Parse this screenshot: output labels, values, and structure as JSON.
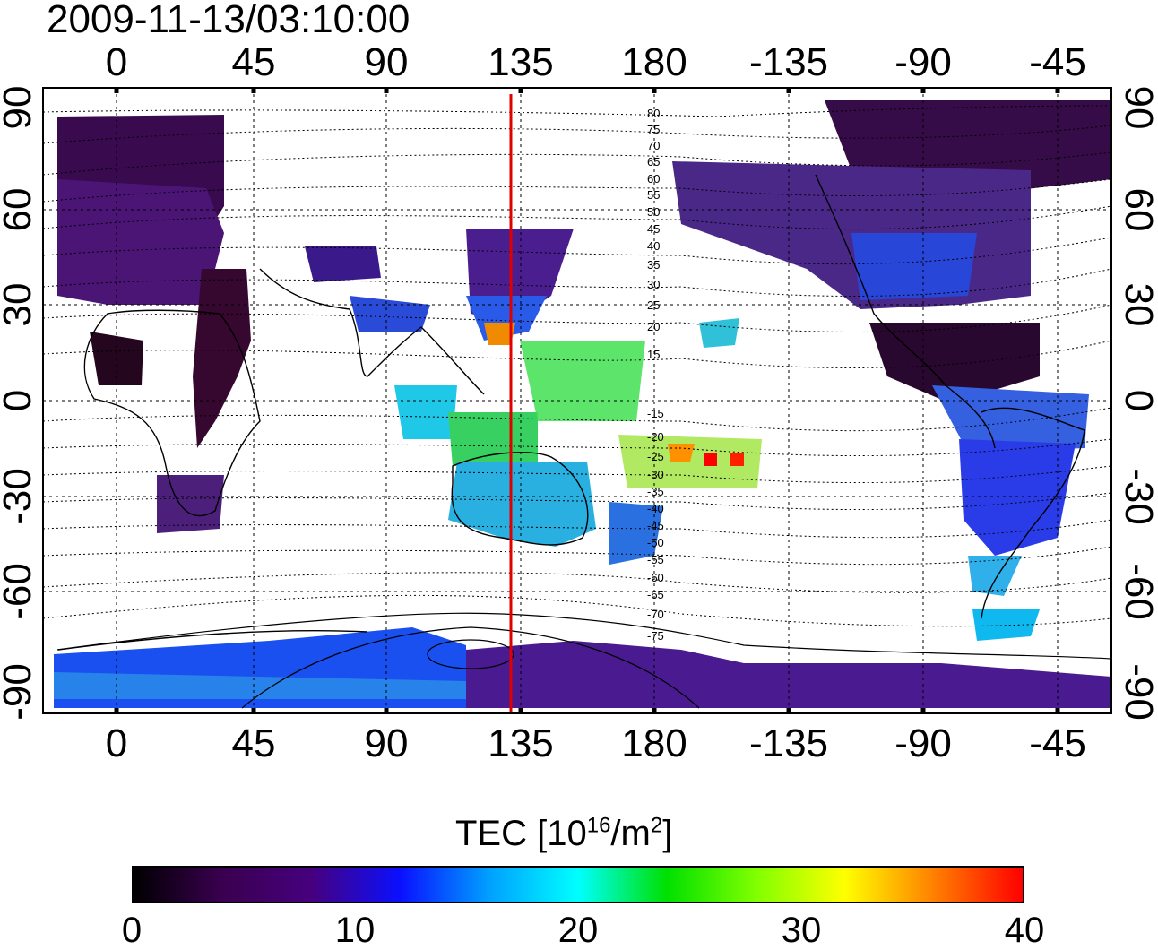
{
  "title": "2009-11-13/03:10:00",
  "map": {
    "projection": "equirectangular",
    "longitude_axis_top": [
      "0",
      "45",
      "90",
      "135",
      "180",
      "-135",
      "-90",
      "-45"
    ],
    "longitude_axis_bottom": [
      "0",
      "45",
      "90",
      "135",
      "180",
      "-135",
      "-90",
      "-45"
    ],
    "latitude_axis_left": [
      "90",
      "60",
      "30",
      "0",
      "-30",
      "-60",
      "-90"
    ],
    "latitude_axis_right": [
      "90",
      "60",
      "30",
      "0",
      "-30",
      "-60",
      "-90"
    ],
    "highlight_meridian": {
      "longitude": 133,
      "color": "#e00000"
    },
    "contour_labels_north": [
      "80",
      "75",
      "70",
      "65",
      "60",
      "55",
      "50",
      "45",
      "40",
      "35",
      "30",
      "25",
      "20",
      "15"
    ],
    "contour_labels_south": [
      "-15",
      "-20",
      "-25",
      "-30",
      "-35",
      "-40",
      "-45",
      "-50",
      "-55",
      "-60",
      "-65",
      "-70",
      "-75"
    ],
    "grid": true
  },
  "colorbar": {
    "title_main": "TEC  [10",
    "title_exp1": "16",
    "title_mid": "/m",
    "title_exp2": "2",
    "title_end": "]",
    "ticks": [
      "0",
      "10",
      "20",
      "30",
      "40"
    ],
    "range": [
      0,
      40
    ],
    "colors": [
      "#000000",
      "#3a0050",
      "#46007e",
      "#0a10ff",
      "#00a0ff",
      "#00ffff",
      "#00e000",
      "#80ff00",
      "#ffff00",
      "#ff8000",
      "#ff0000"
    ]
  }
}
